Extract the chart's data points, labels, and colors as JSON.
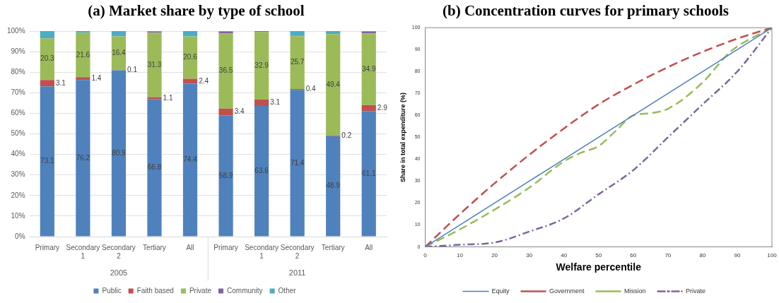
{
  "chart_data": [
    {
      "type": "bar",
      "title": "(a)  Market share by type of school",
      "stacked": true,
      "categories": [
        "Primary",
        "Secondary 1",
        "Secondary 2",
        "Tertiary",
        "All",
        "Primary",
        "Secondary 1",
        "Secondary 2",
        "Tertiary",
        "All"
      ],
      "annotations": [
        "2005",
        "2011"
      ],
      "series": [
        {
          "name": "Public",
          "color": "#4f81bd",
          "values": [
            73.1,
            76.2,
            80.9,
            66.8,
            74.4,
            58.9,
            63.6,
            71.4,
            48.9,
            61.1
          ],
          "value_labels": [
            "73.1",
            "76.2",
            "80.9",
            "66.8",
            "74.4",
            "58.9",
            "63.6",
            "71.4",
            "48.9",
            "61.1"
          ]
        },
        {
          "name": "Faith based",
          "color": "#c0504d",
          "values": [
            3.1,
            1.4,
            0.1,
            1.1,
            2.4,
            3.4,
            3.1,
            0.4,
            0.2,
            2.9
          ],
          "value_labels": [
            "3.1",
            "1.4",
            "0.1",
            "1.1",
            "2.4",
            "3.4",
            "3.1",
            "0.4",
            "0.2",
            "2.9"
          ]
        },
        {
          "name": "Private",
          "color": "#9bbb59",
          "values": [
            20.3,
            21.6,
            16.4,
            31.3,
            20.6,
            36.5,
            32.9,
            25.7,
            49.4,
            34.9
          ],
          "value_labels": [
            "20.3",
            "21.6",
            "16.4",
            "31.3",
            "20.6",
            "36.5",
            "32.9",
            "25.7",
            "49.4",
            "34.9"
          ]
        },
        {
          "name": "Community",
          "color": "#8064a2",
          "values": [
            0,
            0,
            0,
            0.5,
            0,
            1.0,
            0.4,
            0.3,
            0,
            0.8
          ]
        },
        {
          "name": "Other",
          "color": "#4bacc6",
          "values": [
            3.5,
            0.8,
            2.6,
            0.3,
            2.6,
            0.2,
            0,
            2.2,
            1.5,
            0.3
          ]
        }
      ],
      "ylim": [
        0,
        100
      ],
      "yticks": [
        {
          "value": 0,
          "label": "0%"
        },
        {
          "value": 10,
          "label": "10%"
        },
        {
          "value": 20,
          "label": "20%"
        },
        {
          "value": 30,
          "label": "30%"
        },
        {
          "value": 40,
          "label": "40%"
        },
        {
          "value": 50,
          "label": "50%"
        },
        {
          "value": 60,
          "label": "60%"
        },
        {
          "value": 70,
          "label": "70%"
        },
        {
          "value": 80,
          "label": "80%"
        },
        {
          "value": 90,
          "label": "90%"
        },
        {
          "value": 100,
          "label": "100%"
        }
      ],
      "grid": "y",
      "legend": "bottom"
    },
    {
      "type": "line",
      "title": "(b) Concentration curves for primary schools",
      "xlabel": "Welfare percentile",
      "ylabel": "Share in total expenditure (%)",
      "series": [
        {
          "name": "Equity",
          "color": "#4a7ebb",
          "line_style": "solid",
          "x": [
            0,
            100
          ],
          "values": [
            0,
            100
          ]
        },
        {
          "name": "Government",
          "color": "#c0504d",
          "line_style": "dashed",
          "x": [
            0,
            10,
            20,
            30,
            40,
            50,
            60,
            70,
            80,
            90,
            100
          ],
          "values": [
            0,
            15,
            29,
            42,
            54,
            65,
            74,
            82,
            89,
            95,
            100
          ]
        },
        {
          "name": "Mission",
          "color": "#9bbb59",
          "line_style": "dashed",
          "x": [
            0,
            10,
            20,
            30,
            40,
            45,
            50,
            55,
            60,
            65,
            70,
            80,
            88,
            100
          ],
          "values": [
            0,
            8,
            17,
            27,
            39,
            43,
            46,
            53,
            60,
            61,
            63,
            75,
            89,
            100
          ]
        },
        {
          "name": "Private",
          "color": "#7f64a0",
          "line_style": "dashdot",
          "x": [
            0,
            10,
            20,
            30,
            40,
            50,
            60,
            70,
            80,
            90,
            100
          ],
          "values": [
            0,
            1,
            2,
            7,
            13,
            24,
            35,
            50,
            65,
            80,
            100
          ]
        }
      ],
      "xlim": [
        0,
        100
      ],
      "xticks": [
        0,
        10,
        20,
        30,
        40,
        50,
        60,
        70,
        80,
        90,
        100
      ],
      "ylim": [
        0,
        100
      ],
      "yticks": [
        0,
        10,
        20,
        30,
        40,
        50,
        60,
        70,
        80,
        90,
        100
      ],
      "grid": false,
      "marker": "none",
      "legend": "bottom"
    }
  ]
}
